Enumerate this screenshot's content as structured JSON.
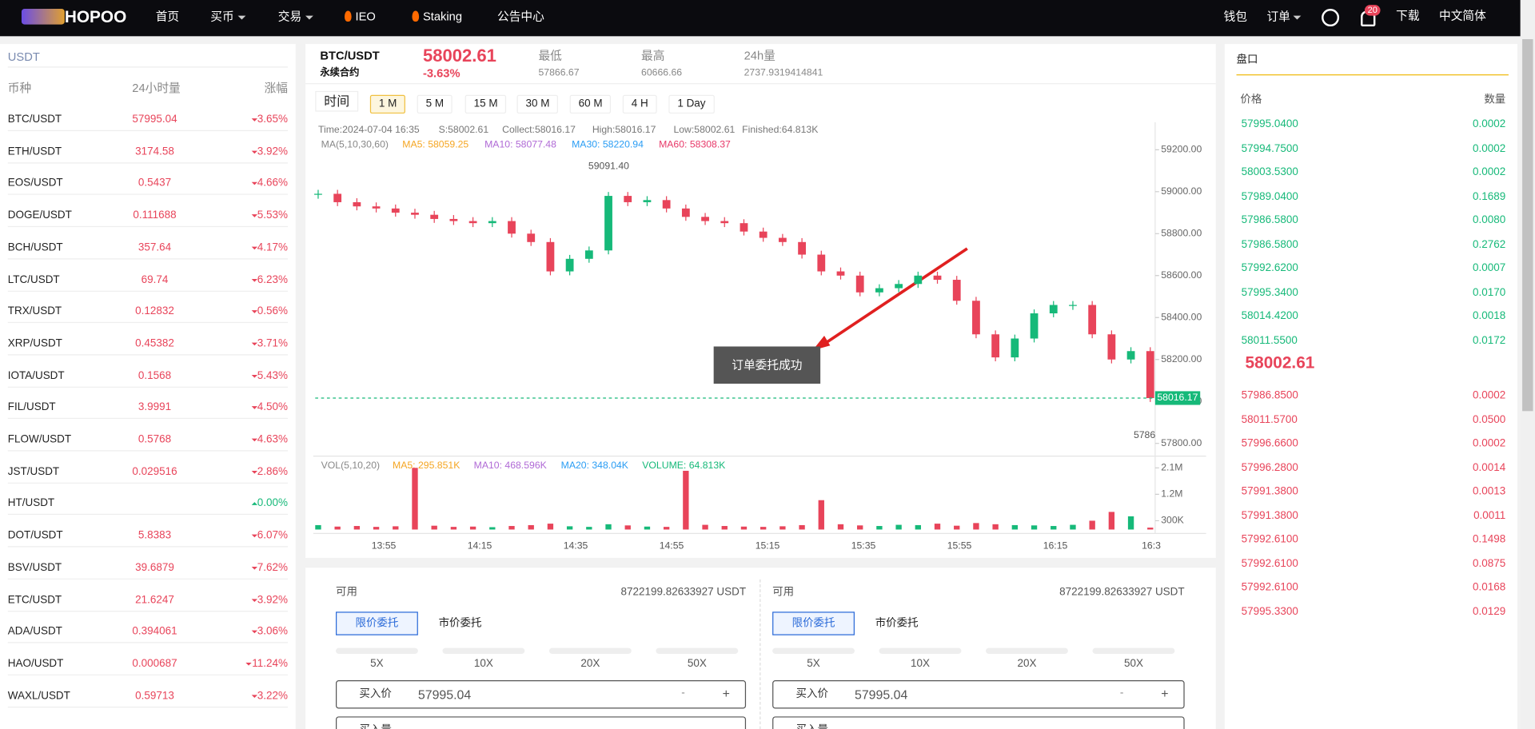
{
  "nav": {
    "logo": "HOPOO",
    "items": [
      "首页",
      "买币",
      "交易",
      "IEO",
      "Staking",
      "公告中心"
    ],
    "right": [
      "钱包",
      "订单"
    ],
    "badge": "20",
    "extra": [
      "下载",
      "中文简体"
    ]
  },
  "market": {
    "tab": "USDT",
    "headers": [
      "币种",
      "24小时量",
      "涨幅"
    ],
    "rows": [
      {
        "pair": "BTC/USDT",
        "price": "57995.04",
        "change": "3.65%",
        "trend": "down"
      },
      {
        "pair": "ETH/USDT",
        "price": "3174.58",
        "change": "3.92%",
        "trend": "down"
      },
      {
        "pair": "EOS/USDT",
        "price": "0.5437",
        "change": "4.66%",
        "trend": "down"
      },
      {
        "pair": "DOGE/USDT",
        "price": "0.111688",
        "change": "5.53%",
        "trend": "down"
      },
      {
        "pair": "BCH/USDT",
        "price": "357.64",
        "change": "4.17%",
        "trend": "down"
      },
      {
        "pair": "LTC/USDT",
        "price": "69.74",
        "change": "6.23%",
        "trend": "down"
      },
      {
        "pair": "TRX/USDT",
        "price": "0.12832",
        "change": "0.56%",
        "trend": "down"
      },
      {
        "pair": "XRP/USDT",
        "price": "0.45382",
        "change": "3.71%",
        "trend": "down"
      },
      {
        "pair": "IOTA/USDT",
        "price": "0.1568",
        "change": "5.43%",
        "trend": "down"
      },
      {
        "pair": "FIL/USDT",
        "price": "3.9991",
        "change": "4.50%",
        "trend": "down"
      },
      {
        "pair": "FLOW/USDT",
        "price": "0.5768",
        "change": "4.63%",
        "trend": "down"
      },
      {
        "pair": "JST/USDT",
        "price": "0.029516",
        "change": "2.86%",
        "trend": "down"
      },
      {
        "pair": "HT/USDT",
        "price": null,
        "change": "0.00%",
        "trend": "up"
      },
      {
        "pair": "DOT/USDT",
        "price": "5.8383",
        "change": "6.07%",
        "trend": "down"
      },
      {
        "pair": "BSV/USDT",
        "price": "39.6879",
        "change": "7.62%",
        "trend": "down"
      },
      {
        "pair": "ETC/USDT",
        "price": "21.6247",
        "change": "3.92%",
        "trend": "down"
      },
      {
        "pair": "ADA/USDT",
        "price": "0.394061",
        "change": "3.06%",
        "trend": "down"
      },
      {
        "pair": "HAO/USDT",
        "price": "0.000687",
        "change": "11.24%",
        "trend": "down"
      },
      {
        "pair": "WAXL/USDT",
        "price": "0.59713",
        "change": "3.22%",
        "trend": "down"
      }
    ]
  },
  "ticker": {
    "pair": "BTC/USDT",
    "contract": "永续合约",
    "price": "58002.61",
    "change": "-3.63%",
    "stats": [
      {
        "label": "最低",
        "value": "57866.67"
      },
      {
        "label": "最高",
        "value": "60666.66"
      },
      {
        "label": "24h量",
        "value": "2737.9319414841"
      }
    ]
  },
  "intervals": {
    "label": "时间",
    "items": [
      "1 M",
      "5 M",
      "15 M",
      "30 M",
      "60 M",
      "4 H",
      "1 Day"
    ],
    "active": 0
  },
  "chart": {
    "info": [
      "Time:2024-07-04 16:35",
      "S:58002.61",
      "Collect:58016.17",
      "High:58016.17",
      "Low:58002.61",
      "Finished:64.813K"
    ],
    "ma": [
      {
        "text": "MA(5,10,30,60)",
        "color": "#888888"
      },
      {
        "text": "MA5: 58059.25",
        "color": "#f5a623"
      },
      {
        "text": "MA10: 58077.48",
        "color": "#b06ad6"
      },
      {
        "text": "MA30: 58220.94",
        "color": "#2a9df4"
      },
      {
        "text": "MA60: 58308.37",
        "color": "#e83a6a"
      }
    ],
    "vol_legend": [
      {
        "text": "VOL(5,10,20)",
        "color": "#888888"
      },
      {
        "text": "MA5: 295.851K",
        "color": "#f5a623"
      },
      {
        "text": "MA10: 468.596K",
        "color": "#b06ad6"
      },
      {
        "text": "MA20: 348.04K",
        "color": "#2a9df4"
      },
      {
        "text": "VOLUME: 64.813K",
        "color": "#16b979"
      }
    ],
    "ylim": [
      57800,
      59200
    ],
    "yticks": [
      {
        "value": 57800,
        "label": "57800.00"
      },
      {
        "value": 58000,
        "label": "58000.00"
      },
      {
        "value": 58200,
        "label": "58200.00"
      },
      {
        "value": 58400,
        "label": "58400.00"
      },
      {
        "value": 58600,
        "label": "58600.00"
      },
      {
        "value": 58800,
        "label": "58800.00"
      },
      {
        "value": 59000,
        "label": "59000.00"
      },
      {
        "value": 59200,
        "label": "59200.00"
      }
    ],
    "high_label": "59091.40",
    "low_label": "5786",
    "last": {
      "value": 58016.17,
      "label": "58016.17"
    },
    "closes": [
      58990,
      58950,
      58930,
      58920,
      58900,
      58890,
      58870,
      58860,
      58850,
      58860,
      58800,
      58760,
      58620,
      58680,
      58720,
      58980,
      58950,
      58960,
      58920,
      58880,
      58860,
      58850,
      58810,
      58780,
      58760,
      58700,
      58620,
      58600,
      58520,
      58540,
      58560,
      58600,
      58580,
      58480,
      58320,
      58210,
      58300,
      58420,
      58460,
      58460,
      58320,
      58200,
      58240,
      58016
    ],
    "volumes": [
      150000,
      100000,
      120000,
      90000,
      110000,
      2100000,
      130000,
      90000,
      100000,
      80000,
      120000,
      150000,
      200000,
      110000,
      90000,
      180000,
      140000,
      100000,
      90000,
      2000000,
      160000,
      120000,
      100000,
      90000,
      110000,
      150000,
      1000000,
      180000,
      140000,
      120000,
      160000,
      150000,
      200000,
      130000,
      220000,
      180000,
      150000,
      140000,
      120000,
      160000,
      300000,
      600000,
      450000,
      64813
    ],
    "vlim": [
      0,
      2100000
    ],
    "vticks": [
      {
        "value": 2100000,
        "label": "2.1M"
      },
      {
        "value": 1200000,
        "label": "1.2M"
      },
      {
        "value": 300000,
        "label": "300K"
      }
    ],
    "times": [
      "13:55",
      "14:15",
      "14:35",
      "14:55",
      "15:15",
      "15:35",
      "15:55",
      "16:15",
      "16:3"
    ],
    "toast": "订单委托成功"
  },
  "trade": [
    {
      "avail_label": "可用",
      "avail": "8722199.82633927 USDT",
      "tabs": [
        "限价委托",
        "市价委托"
      ],
      "leverage": [
        "5X",
        "10X",
        "20X",
        "50X"
      ],
      "price_label": "买入价",
      "price": "57995.04",
      "minus": "-",
      "plus": "+",
      "qty_label": "买入量"
    },
    {
      "avail_label": "可用",
      "avail": "8722199.82633927 USDT",
      "tabs": [
        "限价委托",
        "市价委托"
      ],
      "leverage": [
        "5X",
        "10X",
        "20X",
        "50X"
      ],
      "price_label": "买入价",
      "price": "57995.04",
      "minus": "-",
      "plus": "+",
      "qty_label": "买入量"
    }
  ],
  "orderbook": {
    "title": "盘口",
    "headers": [
      "价格",
      "数量"
    ],
    "asks": [
      [
        "57995.0400",
        "0.0002"
      ],
      [
        "57994.7500",
        "0.0002"
      ],
      [
        "58003.5300",
        "0.0002"
      ],
      [
        "57989.0400",
        "0.1689"
      ],
      [
        "57986.5800",
        "0.0080"
      ],
      [
        "57986.5800",
        "0.2762"
      ],
      [
        "57992.6200",
        "0.0007"
      ],
      [
        "57995.3400",
        "0.0170"
      ],
      [
        "58014.4200",
        "0.0018"
      ],
      [
        "58011.5500",
        "0.0172"
      ]
    ],
    "mid": "58002.61",
    "bids": [
      [
        "57986.8500",
        "0.0002"
      ],
      [
        "58011.5700",
        "0.0500"
      ],
      [
        "57996.6600",
        "0.0002"
      ],
      [
        "57996.2800",
        "0.0014"
      ],
      [
        "57991.3800",
        "0.0013"
      ],
      [
        "57991.3800",
        "0.0011"
      ],
      [
        "57992.6100",
        "0.1498"
      ],
      [
        "57992.6100",
        "0.0875"
      ],
      [
        "57992.6100",
        "0.0168"
      ],
      [
        "57995.3300",
        "0.0129"
      ]
    ]
  }
}
